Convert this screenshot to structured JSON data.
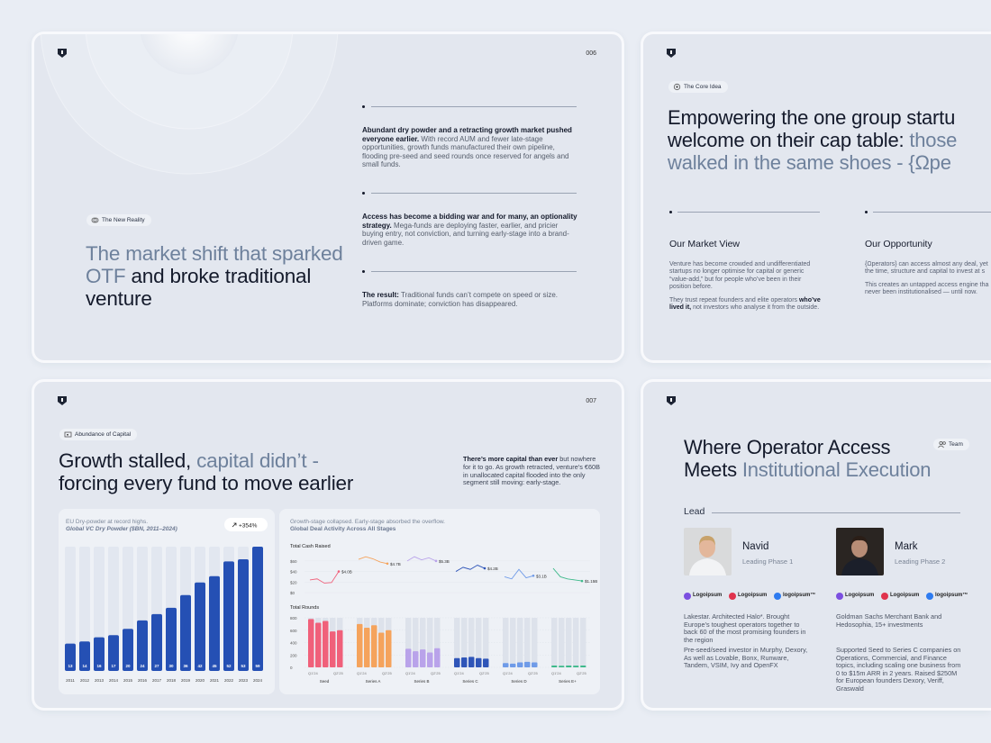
{
  "slides": [
    {
      "page_number": "006",
      "tag": "The New Reality",
      "heading": {
        "muted": "The market shift that sparked OTF",
        "dark": "and broke traditional venture"
      },
      "points": [
        {
          "bold": "Abundant dry powder and a retracting growth market pushed everyone earlier.",
          "text": "With record AUM and fewer late-stage opportunities, growth funds manufactured their own pipeline, flooding pre-seed and seed rounds once reserved for angels and small funds."
        },
        {
          "bold": "Access has become a bidding war and for many, an optionality strategy.",
          "text": "Mega-funds are deploying faster, earlier, and pricier buying entry, not conviction, and turning early-stage into a brand-driven game."
        },
        {
          "bold": "The result:",
          "text": "Traditional funds can’t compete on speed or size. Platforms dominate; conviction has disappeared."
        }
      ]
    },
    {
      "tag": "The Core Idea",
      "heading": {
        "line1": "Empowering the one group startu",
        "line2": "welcome on their cap table:",
        "line2_muted": "those",
        "line3_muted": "walked in the same shoes - {Ωpe"
      },
      "market_view": {
        "title": "Our Market View",
        "paragraph1": "Venture has become crowded and undifferentiated startups no longer optimise for capital or generic “value-add,” but for people who’ve been in their position before.",
        "paragraph2": {
          "before": "They trust repeat founders and elite operators",
          "bold": "who’ve lived it,",
          "after": "not investors who analyse it from the outside."
        }
      },
      "opportunity": {
        "title": "Our Opportunity",
        "lines": [
          "{Ωperators} can access almost any deal, yet",
          "the time, structure and capital to invest at s",
          "This creates an untapped access engine tha",
          "never been institutionalised — until now."
        ]
      }
    },
    {
      "page_number": "007",
      "tag": "Abundance of Capital",
      "heading": {
        "dark": "Growth stalled,",
        "muted": "capital didn’t -",
        "dark2": "forcing every fund to move earlier"
      },
      "note": {
        "bold": "There’s more capital than ever",
        "text": "but nowhere for it to go. As growth retracted, venture’s €60B in unallocated capital flooded into the only segment still moving: early-stage."
      },
      "dry_powder": {
        "type": "bar",
        "title": "EU Dry-powder at record highs.",
        "subtitle": "Global VC Dry Powder ($BN, 2011–2024)",
        "badge": "+354%",
        "color": "#2550b4",
        "categories": [
          "2011",
          "2012",
          "2013",
          "2014",
          "2015",
          "2016",
          "2017",
          "2018",
          "2019",
          "2020",
          "2021",
          "2022",
          "2023",
          "2024"
        ],
        "values": [
          13,
          14,
          16,
          17,
          20,
          24,
          27,
          30,
          36,
          42,
          45,
          52,
          53,
          59
        ]
      },
      "deal_activity": {
        "title": "Growth-stage collapsed. Early-stage absorbed the overflow.",
        "subtitle": "Global Deal Activity Across All Stages",
        "cash": {
          "type": "line",
          "title": "Total Cash Raised",
          "ylim": [
            0,
            70
          ],
          "yticks": [
            {
              "value": 0,
              "label": "$0"
            },
            {
              "value": 20,
              "label": "$20"
            },
            {
              "value": 40,
              "label": "$40"
            },
            {
              "value": 60,
              "label": "$60"
            }
          ]
        },
        "rounds": {
          "type": "bar",
          "title": "Total Rounds",
          "ylim": [
            0,
            800
          ],
          "yticks": [
            0,
            200,
            400,
            600,
            800
          ]
        },
        "quarter_labels": [
          "Q1’24",
          "Q2’25"
        ],
        "series": [
          {
            "name": "Seed",
            "color": "#f0607a",
            "cash": [
              24,
              26,
              18,
              19,
              40
            ],
            "cash_label": "$4.0B",
            "rounds": [
              780,
              720,
              750,
              580,
              600
            ]
          },
          {
            "name": "Series A",
            "color": "#f5a35c",
            "cash": [
              63,
              68,
              64,
              58,
              55
            ],
            "cash_label": "$4.7B",
            "rounds": [
              700,
              640,
              680,
              560,
              600
            ]
          },
          {
            "name": "Series B",
            "color": "#b9a3ea",
            "cash": [
              60,
              68,
              62,
              66,
              60
            ],
            "cash_label": "$5.3B",
            "rounds": [
              300,
              260,
              290,
              240,
              310
            ]
          },
          {
            "name": "Series C",
            "color": "#2f55b8",
            "cash": [
              40,
              48,
              44,
              52,
              46
            ],
            "cash_label": "$4.2B",
            "rounds": [
              150,
              160,
              170,
              150,
              140
            ]
          },
          {
            "name": "Series D",
            "color": "#6f9be8",
            "cash": [
              30,
              26,
              44,
              28,
              32
            ],
            "cash_label": "$3.1B",
            "rounds": [
              70,
              60,
              80,
              90,
              80
            ]
          },
          {
            "name": "Series E+",
            "color": "#3db98a",
            "cash": [
              46,
              30,
              26,
              24,
              22
            ],
            "cash_label": "$1.15B",
            "rounds": [
              30,
              25,
              30,
              28,
              30
            ]
          }
        ]
      }
    },
    {
      "heading": {
        "line1": "Where Operator Access",
        "line2": "Meets",
        "line2_muted": "Institutional Execution"
      },
      "tag": "Team",
      "section": "Lead",
      "logos": [
        "Logoipsum",
        "Logoipsum",
        "logoipsum™"
      ],
      "people": [
        {
          "name": "Navid",
          "role": "Leading Phase 1",
          "bio": [
            "Lakestar. Architected Halo*. Brought Europe’s toughest operators together to back 60 of the most promising founders in the region",
            "Pre-seed/seed investor in Murphy, Dexory, As well as Lovable, Bonx, Runware, Tandem, VSIM, Ivy and OpenFX"
          ]
        },
        {
          "name": "Mark",
          "role": "Leading Phase 2",
          "bio": [
            "Goldman Sachs Merchant Bank and Hedosophia, 15+ investments",
            "Supported Seed to Series C companies on Operations, Commercial, and Finance topics, including scaling one business from 0 to $15m ARR in 2 years. Raised $250M for European founders Dexory, Veriff, Graswald"
          ]
        }
      ]
    }
  ]
}
